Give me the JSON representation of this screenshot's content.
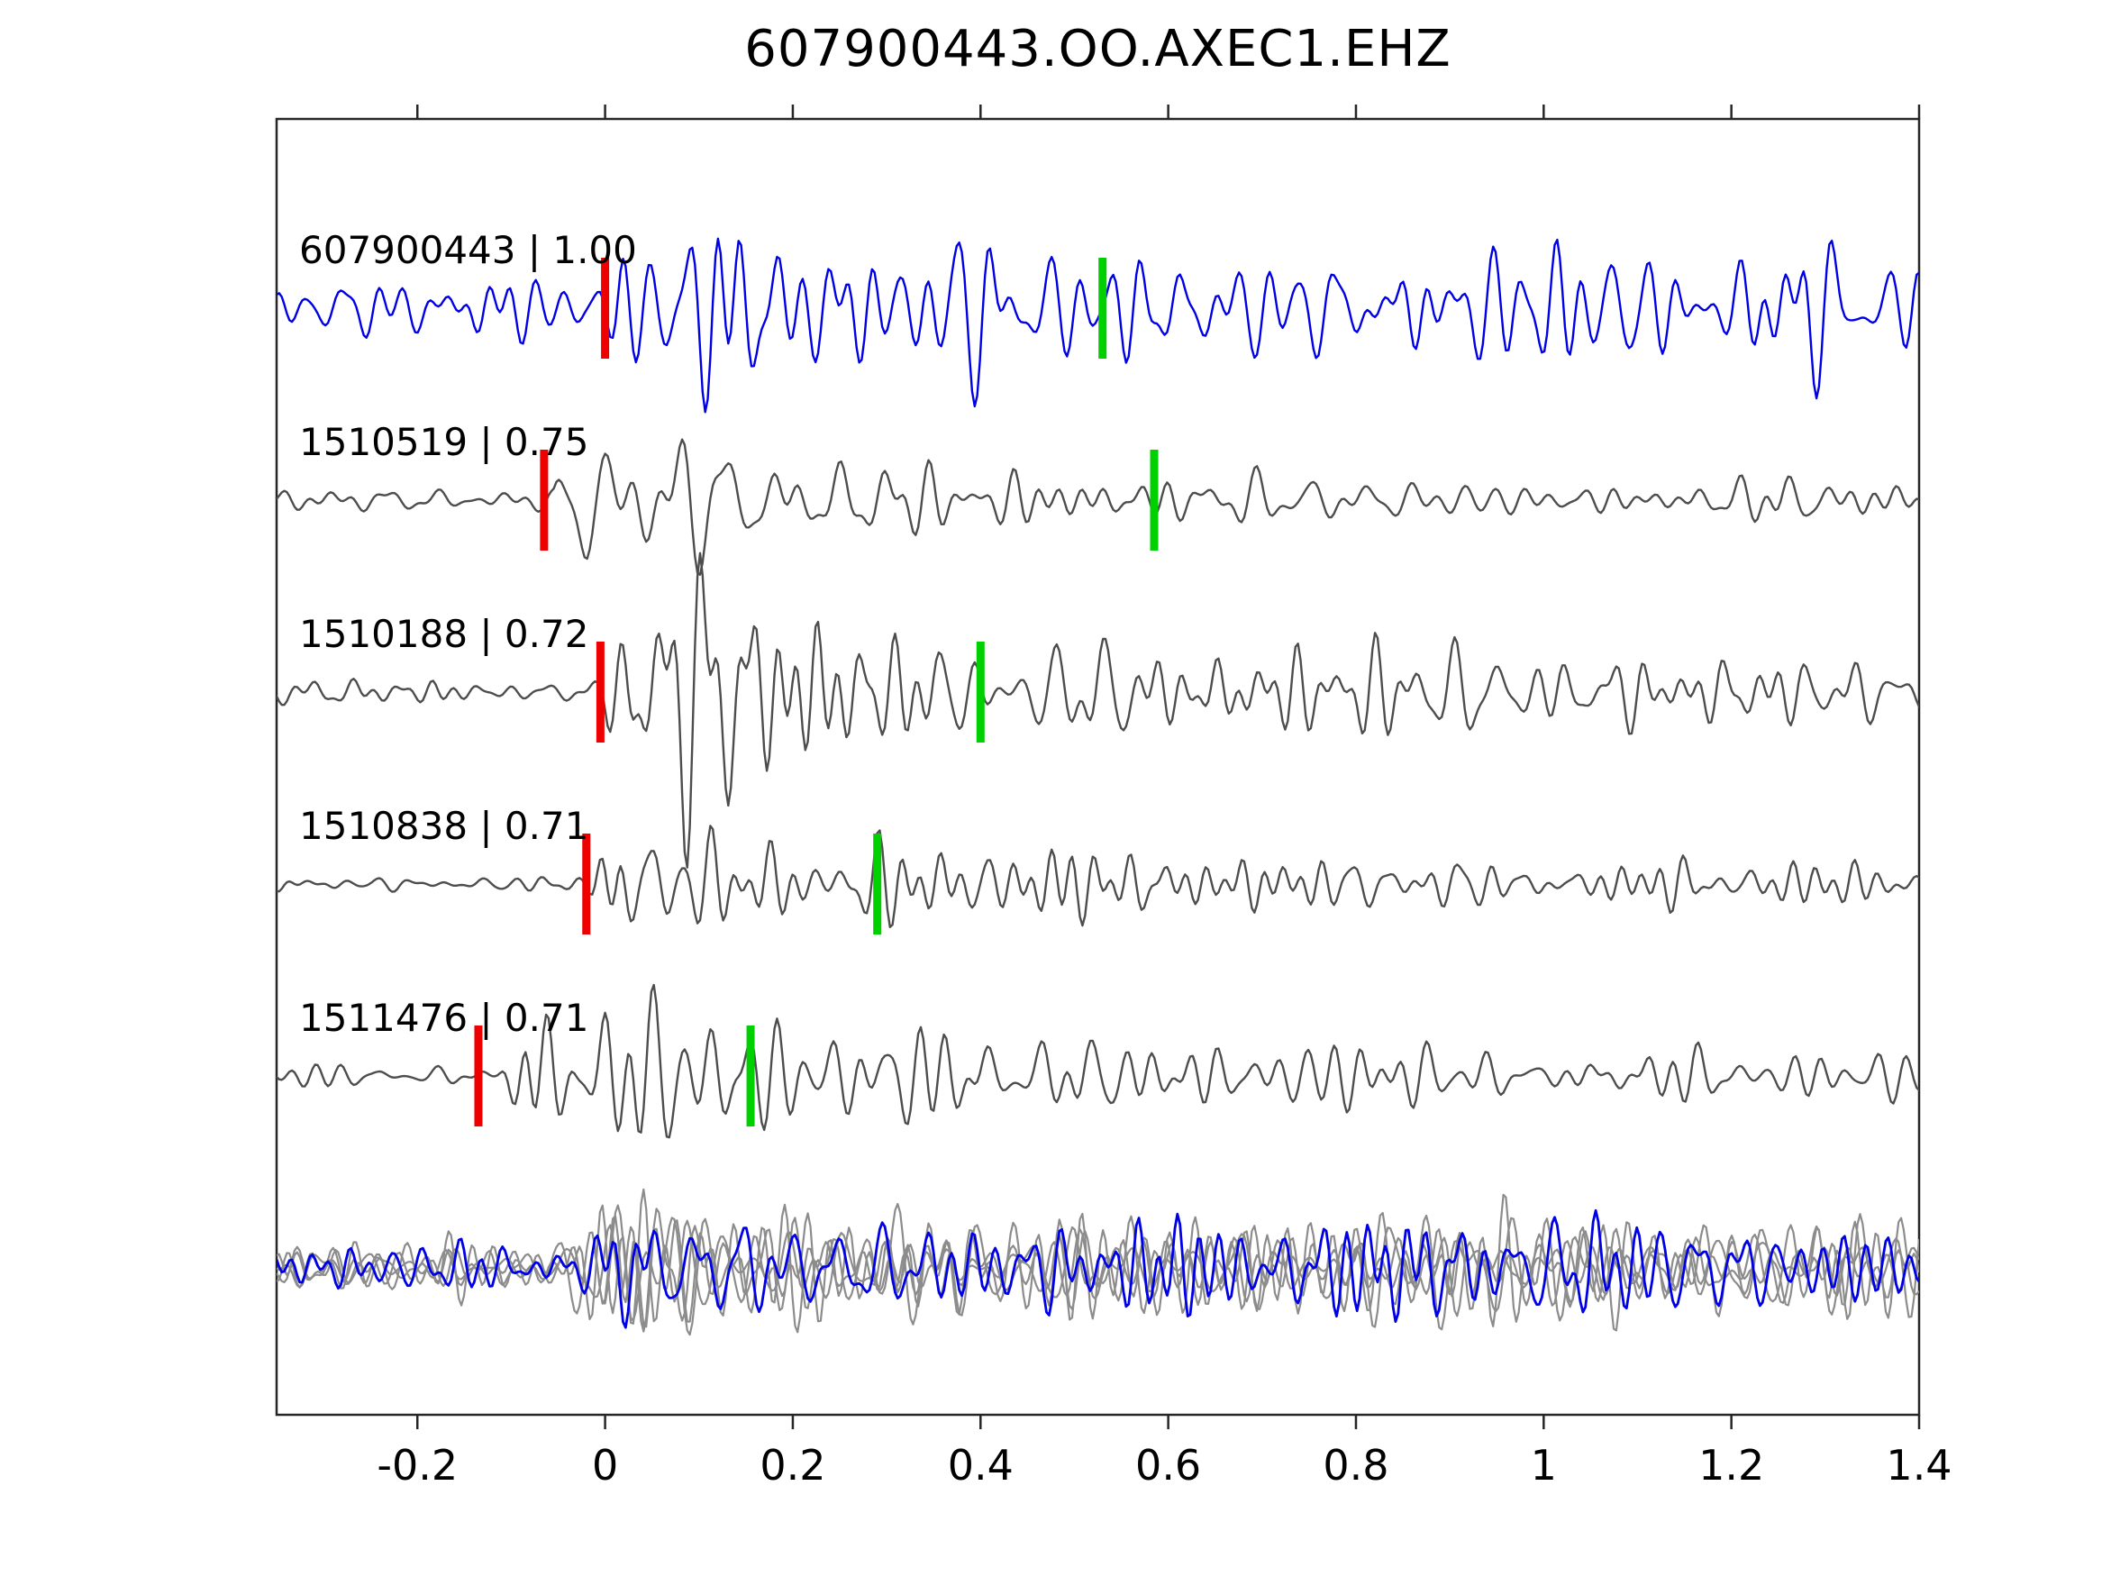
{
  "figure": {
    "title": "607900443.OO.AXEC1.EHZ"
  },
  "chart_data": {
    "type": "line",
    "title": "607900443.OO.AXEC1.EHZ",
    "subtitle": "",
    "xlabel": "",
    "ylabel": "",
    "grid": false,
    "legend": false,
    "x_axis": {
      "min": -0.35,
      "max": 1.4,
      "ticks": [
        -0.2,
        0,
        0.2,
        0.4,
        0.6,
        0.8,
        1,
        1.2,
        1.4
      ],
      "tick_labels": [
        "-0.2",
        "0",
        "0.2",
        "0.4",
        "0.6",
        "0.8",
        "1",
        "1.2",
        "1.4"
      ]
    },
    "colors": {
      "template_trace": "#0000e6",
      "match_trace": "#4d4d4d",
      "overlay_trace": "#8c8c8c",
      "red_pick": "#ee0000",
      "green_pick": "#00cf00",
      "border": "#262626",
      "text": "#000000",
      "background": "#ffffff"
    },
    "traces": [
      {
        "id": "607900443",
        "label": "607900443 | 1.00",
        "similarity": "1.00",
        "role": "template",
        "picks": {
          "red_x": 0.0,
          "green_x": 0.53
        },
        "synth": {
          "seed": 11,
          "noise": 0.5,
          "burst": 1.8,
          "onset": -0.02,
          "decay": 0.2,
          "coda": 0.42,
          "amp": 40
        }
      },
      {
        "id": "1510519",
        "label": "1510519 | 0.75",
        "similarity": "0.75",
        "role": "match",
        "picks": {
          "red_x": -0.065,
          "green_x": 0.585
        },
        "synth": {
          "seed": 22,
          "noise": 0.16,
          "burst": 1.55,
          "onset": -0.055,
          "decay": 0.22,
          "coda": 0.12,
          "amp": 56
        }
      },
      {
        "id": "1510188",
        "label": "1510188 | 0.72",
        "similarity": "0.72",
        "role": "match",
        "picks": {
          "red_x": -0.005,
          "green_x": 0.4
        },
        "synth": {
          "seed": 33,
          "noise": 0.15,
          "burst": 1.35,
          "onset": -0.005,
          "decay": 0.3,
          "coda": 0.15,
          "amp": 56
        }
      },
      {
        "id": "1510838",
        "label": "1510838 | 0.71",
        "similarity": "0.71",
        "role": "match",
        "picks": {
          "red_x": -0.02,
          "green_x": 0.29
        },
        "synth": {
          "seed": 44,
          "noise": 0.12,
          "burst": 1.3,
          "onset": -0.02,
          "decay": 0.22,
          "coda": 0.2,
          "amp": 50
        }
      },
      {
        "id": "1511476",
        "label": "1511476 | 0.71",
        "similarity": "0.71",
        "role": "match",
        "picks": {
          "red_x": -0.135,
          "green_x": 0.155
        },
        "synth": {
          "seed": 55,
          "noise": 0.13,
          "burst": 1.4,
          "onset": -0.115,
          "decay": 0.32,
          "coda": 0.16,
          "amp": 56
        }
      }
    ],
    "overlay": {
      "description": "aligned stack of all matched traces (gray) with template trace (blue) on top",
      "gray_seeds": [
        61,
        62,
        63,
        64
      ],
      "blue_seed": 65,
      "gray_synth": {
        "noise": 0.5,
        "burst": 1.6,
        "onset": -0.05,
        "decay": 0.16,
        "coda": 0.4,
        "amp": 36
      },
      "blue_synth": {
        "noise": 0.55,
        "burst": 1.5,
        "onset": -0.02,
        "decay": 0.17,
        "coda": 0.45,
        "amp": 34
      }
    }
  }
}
